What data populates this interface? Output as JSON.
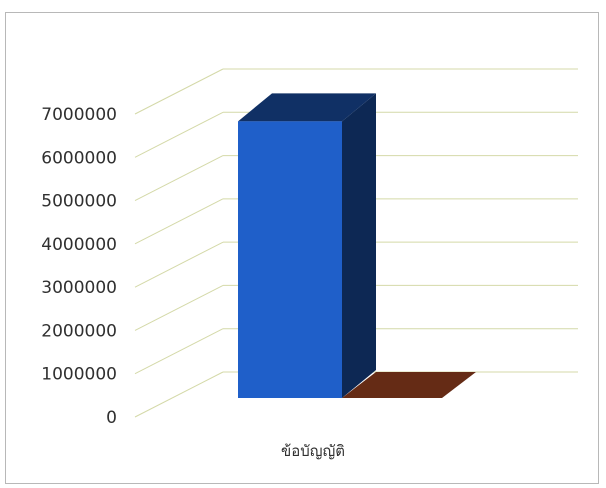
{
  "chart_data": {
    "type": "bar",
    "variant": "3d-column",
    "categories": [
      "ข้อบัญญัติ"
    ],
    "series": [
      {
        "values": [
          6800000
        ],
        "color": "#1f5fc9"
      },
      {
        "values": [
          0
        ],
        "color": "#c9562a"
      }
    ],
    "ylim": [
      0,
      7000000
    ],
    "yticks": [
      "0",
      "1000000",
      "2000000",
      "3000000",
      "4000000",
      "5000000",
      "6000000",
      "7000000"
    ],
    "grid": true,
    "grid_color": "#d4d9a8",
    "legend": "none"
  }
}
